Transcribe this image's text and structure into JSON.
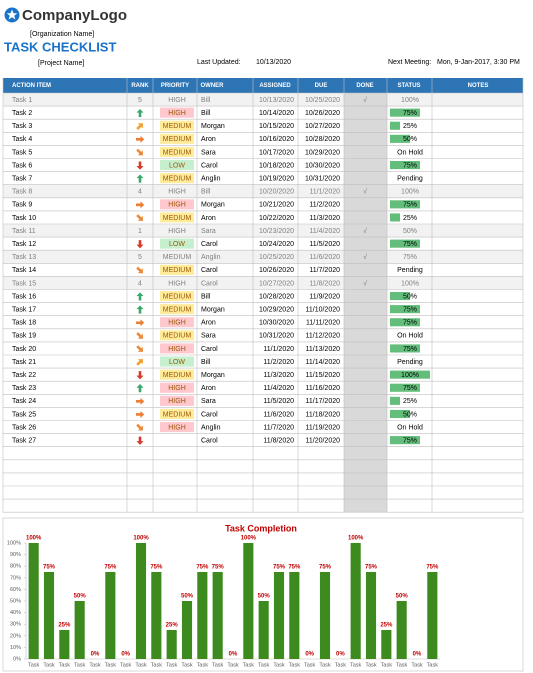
{
  "header": {
    "logo": "CompanyLogo",
    "organization": "[Organization Name]",
    "title": "TASK CHECKLIST",
    "project": "[Project  Name]",
    "last_updated_label": "Last Updated:",
    "last_updated": "10/13/2020",
    "next_meeting_label": "Next Meeting:",
    "next_meeting": "Mon, 9-Jan-2017, 3:30 PM"
  },
  "table": {
    "columns": [
      "ACTION ITEM",
      "RANK",
      "PRIORITY",
      "OWNER",
      "ASSIGNED",
      "DUE",
      "DONE",
      "STATUS",
      "NOTES"
    ],
    "priority_colors": {
      "HIGH": "#ffc7ce",
      "MEDIUM": "#ffeb9c",
      "LOW": "#c6efce"
    },
    "rank_icon_colors": [
      "#3aa76d",
      "#f0a030",
      "#ed7d31",
      "#e98a3c",
      "#d9392b"
    ],
    "rows": [
      [
        "Task 1",
        5,
        "HIGH",
        "Bill",
        "10/13/2020",
        "10/25/2020",
        "√",
        "100%"
      ],
      [
        "Task 2",
        1,
        "HIGH",
        "Bill",
        "10/14/2020",
        "10/26/2020",
        null,
        "75%"
      ],
      [
        "Task 3",
        2,
        "MEDIUM",
        "Morgan",
        "10/15/2020",
        "10/27/2020",
        null,
        "25%"
      ],
      [
        "Task 4",
        3,
        "MEDIUM",
        "Aron",
        "10/16/2020",
        "10/28/2020",
        null,
        "50%"
      ],
      [
        "Task 5",
        4,
        "MEDIUM",
        "Sara",
        "10/17/2020",
        "10/29/2020",
        null,
        "On Hold"
      ],
      [
        "Task 6",
        5,
        "LOW",
        "Carol",
        "10/18/2020",
        "10/30/2020",
        null,
        "75%"
      ],
      [
        "Task 7",
        1,
        "MEDIUM",
        "Anglin",
        "10/19/2020",
        "10/31/2020",
        null,
        "Pending"
      ],
      [
        "Task 8",
        4,
        "HIGH",
        "Bill",
        "10/20/2020",
        "11/1/2020",
        "√",
        "100%"
      ],
      [
        "Task 9",
        3,
        "HIGH",
        "Morgan",
        "10/21/2020",
        "11/2/2020",
        null,
        "75%"
      ],
      [
        "Task 10",
        4,
        "MEDIUM",
        "Aron",
        "10/22/2020",
        "11/3/2020",
        null,
        "25%"
      ],
      [
        "Task 11",
        1,
        "HIGH",
        "Sara",
        "10/23/2020",
        "11/4/2020",
        "√",
        "50%"
      ],
      [
        "Task 12",
        5,
        "LOW",
        "Carol",
        "10/24/2020",
        "11/5/2020",
        null,
        "75%"
      ],
      [
        "Task 13",
        5,
        "MEDIUM",
        "Anglin",
        "10/25/2020",
        "11/6/2020",
        "√",
        "75%"
      ],
      [
        "Task 14",
        4,
        "MEDIUM",
        "Carol",
        "10/26/2020",
        "11/7/2020",
        null,
        "Pending"
      ],
      [
        "Task 15",
        4,
        "HIGH",
        "Carol",
        "10/27/2020",
        "11/8/2020",
        "√",
        "100%"
      ],
      [
        "Task 16",
        1,
        "MEDIUM",
        "Bill",
        "10/28/2020",
        "11/9/2020",
        null,
        "50%"
      ],
      [
        "Task 17",
        1,
        "MEDIUM",
        "Morgan",
        "10/29/2020",
        "11/10/2020",
        null,
        "75%"
      ],
      [
        "Task 18",
        3,
        "HIGH",
        "Aron",
        "10/30/2020",
        "11/11/2020",
        null,
        "75%"
      ],
      [
        "Task 19",
        4,
        "MEDIUM",
        "Sara",
        "10/31/2020",
        "11/12/2020",
        null,
        "On Hold"
      ],
      [
        "Task 20",
        4,
        "HIGH",
        "Carol",
        "11/1/2020",
        "11/13/2020",
        null,
        "75%"
      ],
      [
        "Task 21",
        2,
        "LOW",
        "Bill",
        "11/2/2020",
        "11/14/2020",
        null,
        "Pending"
      ],
      [
        "Task 22",
        5,
        "MEDIUM",
        "Morgan",
        "11/3/2020",
        "11/15/2020",
        null,
        "100%"
      ],
      [
        "Task 23",
        1,
        "HIGH",
        "Aron",
        "11/4/2020",
        "11/16/2020",
        null,
        "75%"
      ],
      [
        "Task 24",
        3,
        "HIGH",
        "Sara",
        "11/5/2020",
        "11/17/2020",
        null,
        "25%"
      ],
      [
        "Task 25",
        3,
        "MEDIUM",
        "Carol",
        "11/6/2020",
        "11/18/2020",
        null,
        "50%"
      ],
      [
        "Task 26",
        4,
        "HIGH",
        "Anglin",
        "11/7/2020",
        "11/19/2020",
        null,
        "On Hold"
      ],
      [
        "Task 27",
        5,
        null,
        "Carol",
        "11/8/2020",
        "11/20/2020",
        null,
        "75%"
      ]
    ]
  },
  "chart_data": {
    "type": "bar",
    "title": "Task Completion",
    "categories": [
      "Task",
      "Task",
      "Task",
      "Task",
      "Task",
      "Task",
      "Task",
      "Task",
      "Task",
      "Task",
      "Task",
      "Task",
      "Task",
      "Task",
      "Task",
      "Task",
      "Task",
      "Task",
      "Task",
      "Task",
      "Task",
      "Task",
      "Task",
      "Task",
      "Task",
      "Task",
      "Task"
    ],
    "values": [
      100,
      75,
      25,
      50,
      0,
      75,
      0,
      100,
      75,
      25,
      50,
      75,
      75,
      0,
      100,
      50,
      75,
      75,
      0,
      75,
      0,
      100,
      75,
      25,
      50,
      0,
      75
    ],
    "value_labels": [
      "100%",
      "75%",
      "25%",
      "50%",
      "0%",
      "75%",
      "0%",
      "100%",
      "75%",
      "25%",
      "50%",
      "75%",
      "75%",
      "0%",
      "100%",
      "50%",
      "75%",
      "75%",
      "0%",
      "75%",
      "0%",
      "100%",
      "75%",
      "25%",
      "50%",
      "0%",
      "75%"
    ],
    "color": "#3d8a1f",
    "label_color": "#c00000",
    "ylim": [
      0,
      100
    ],
    "yticks": [
      {
        "value": 0,
        "label": "0%"
      },
      {
        "value": 10,
        "label": "10%"
      },
      {
        "value": 20,
        "label": "20%"
      },
      {
        "value": 30,
        "label": "30%"
      },
      {
        "value": 40,
        "label": "40%"
      },
      {
        "value": 50,
        "label": "50%"
      },
      {
        "value": 60,
        "label": "60%"
      },
      {
        "value": 70,
        "label": "70%"
      },
      {
        "value": 80,
        "label": "80%"
      },
      {
        "value": 90,
        "label": "90%"
      },
      {
        "value": 100,
        "label": "100%"
      }
    ],
    "grid": false
  }
}
